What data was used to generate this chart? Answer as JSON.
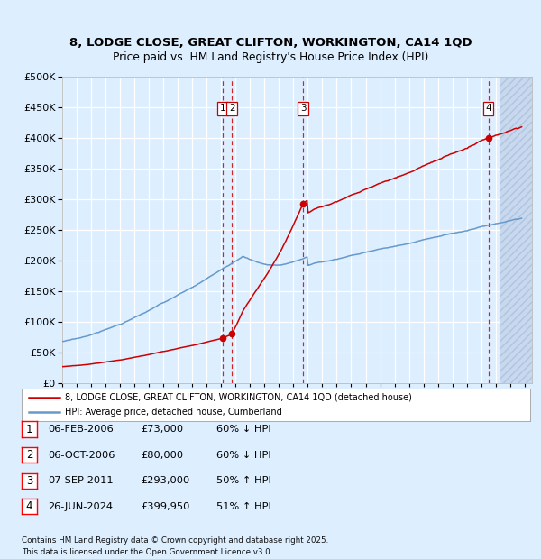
{
  "title_line1": "8, LODGE CLOSE, GREAT CLIFTON, WORKINGTON, CA14 1QD",
  "title_line2": "Price paid vs. HM Land Registry's House Price Index (HPI)",
  "bg_color": "#ddeeff",
  "grid_color": "#ffffff",
  "house_color": "#cc0000",
  "hpi_color": "#6699cc",
  "yticks": [
    0,
    50000,
    100000,
    150000,
    200000,
    250000,
    300000,
    350000,
    400000,
    450000,
    500000
  ],
  "ylim": [
    0,
    500000
  ],
  "xlim": [
    1995.0,
    2027.5
  ],
  "hatch_start": 2025.3,
  "transactions": [
    {
      "num": 1,
      "date_dec": 2006.09,
      "price": 73000,
      "date_str": "06-FEB-2006",
      "price_str": "£73,000",
      "hpi_str": "60% ↓ HPI"
    },
    {
      "num": 2,
      "date_dec": 2006.75,
      "price": 80000,
      "date_str": "06-OCT-2006",
      "price_str": "£80,000",
      "hpi_str": "60% ↓ HPI"
    },
    {
      "num": 3,
      "date_dec": 2011.67,
      "price": 293000,
      "date_str": "07-SEP-2011",
      "price_str": "£293,000",
      "hpi_str": "50% ↑ HPI"
    },
    {
      "num": 4,
      "date_dec": 2024.49,
      "price": 399950,
      "date_str": "26-JUN-2024",
      "price_str": "£399,950",
      "hpi_str": "51% ↑ HPI"
    }
  ],
  "legend1_label": "8, LODGE CLOSE, GREAT CLIFTON, WORKINGTON, CA14 1QD (detached house)",
  "legend2_label": "HPI: Average price, detached house, Cumberland",
  "footer": "Contains HM Land Registry data © Crown copyright and database right 2025.\nThis data is licensed under the Open Government Licence v3.0."
}
